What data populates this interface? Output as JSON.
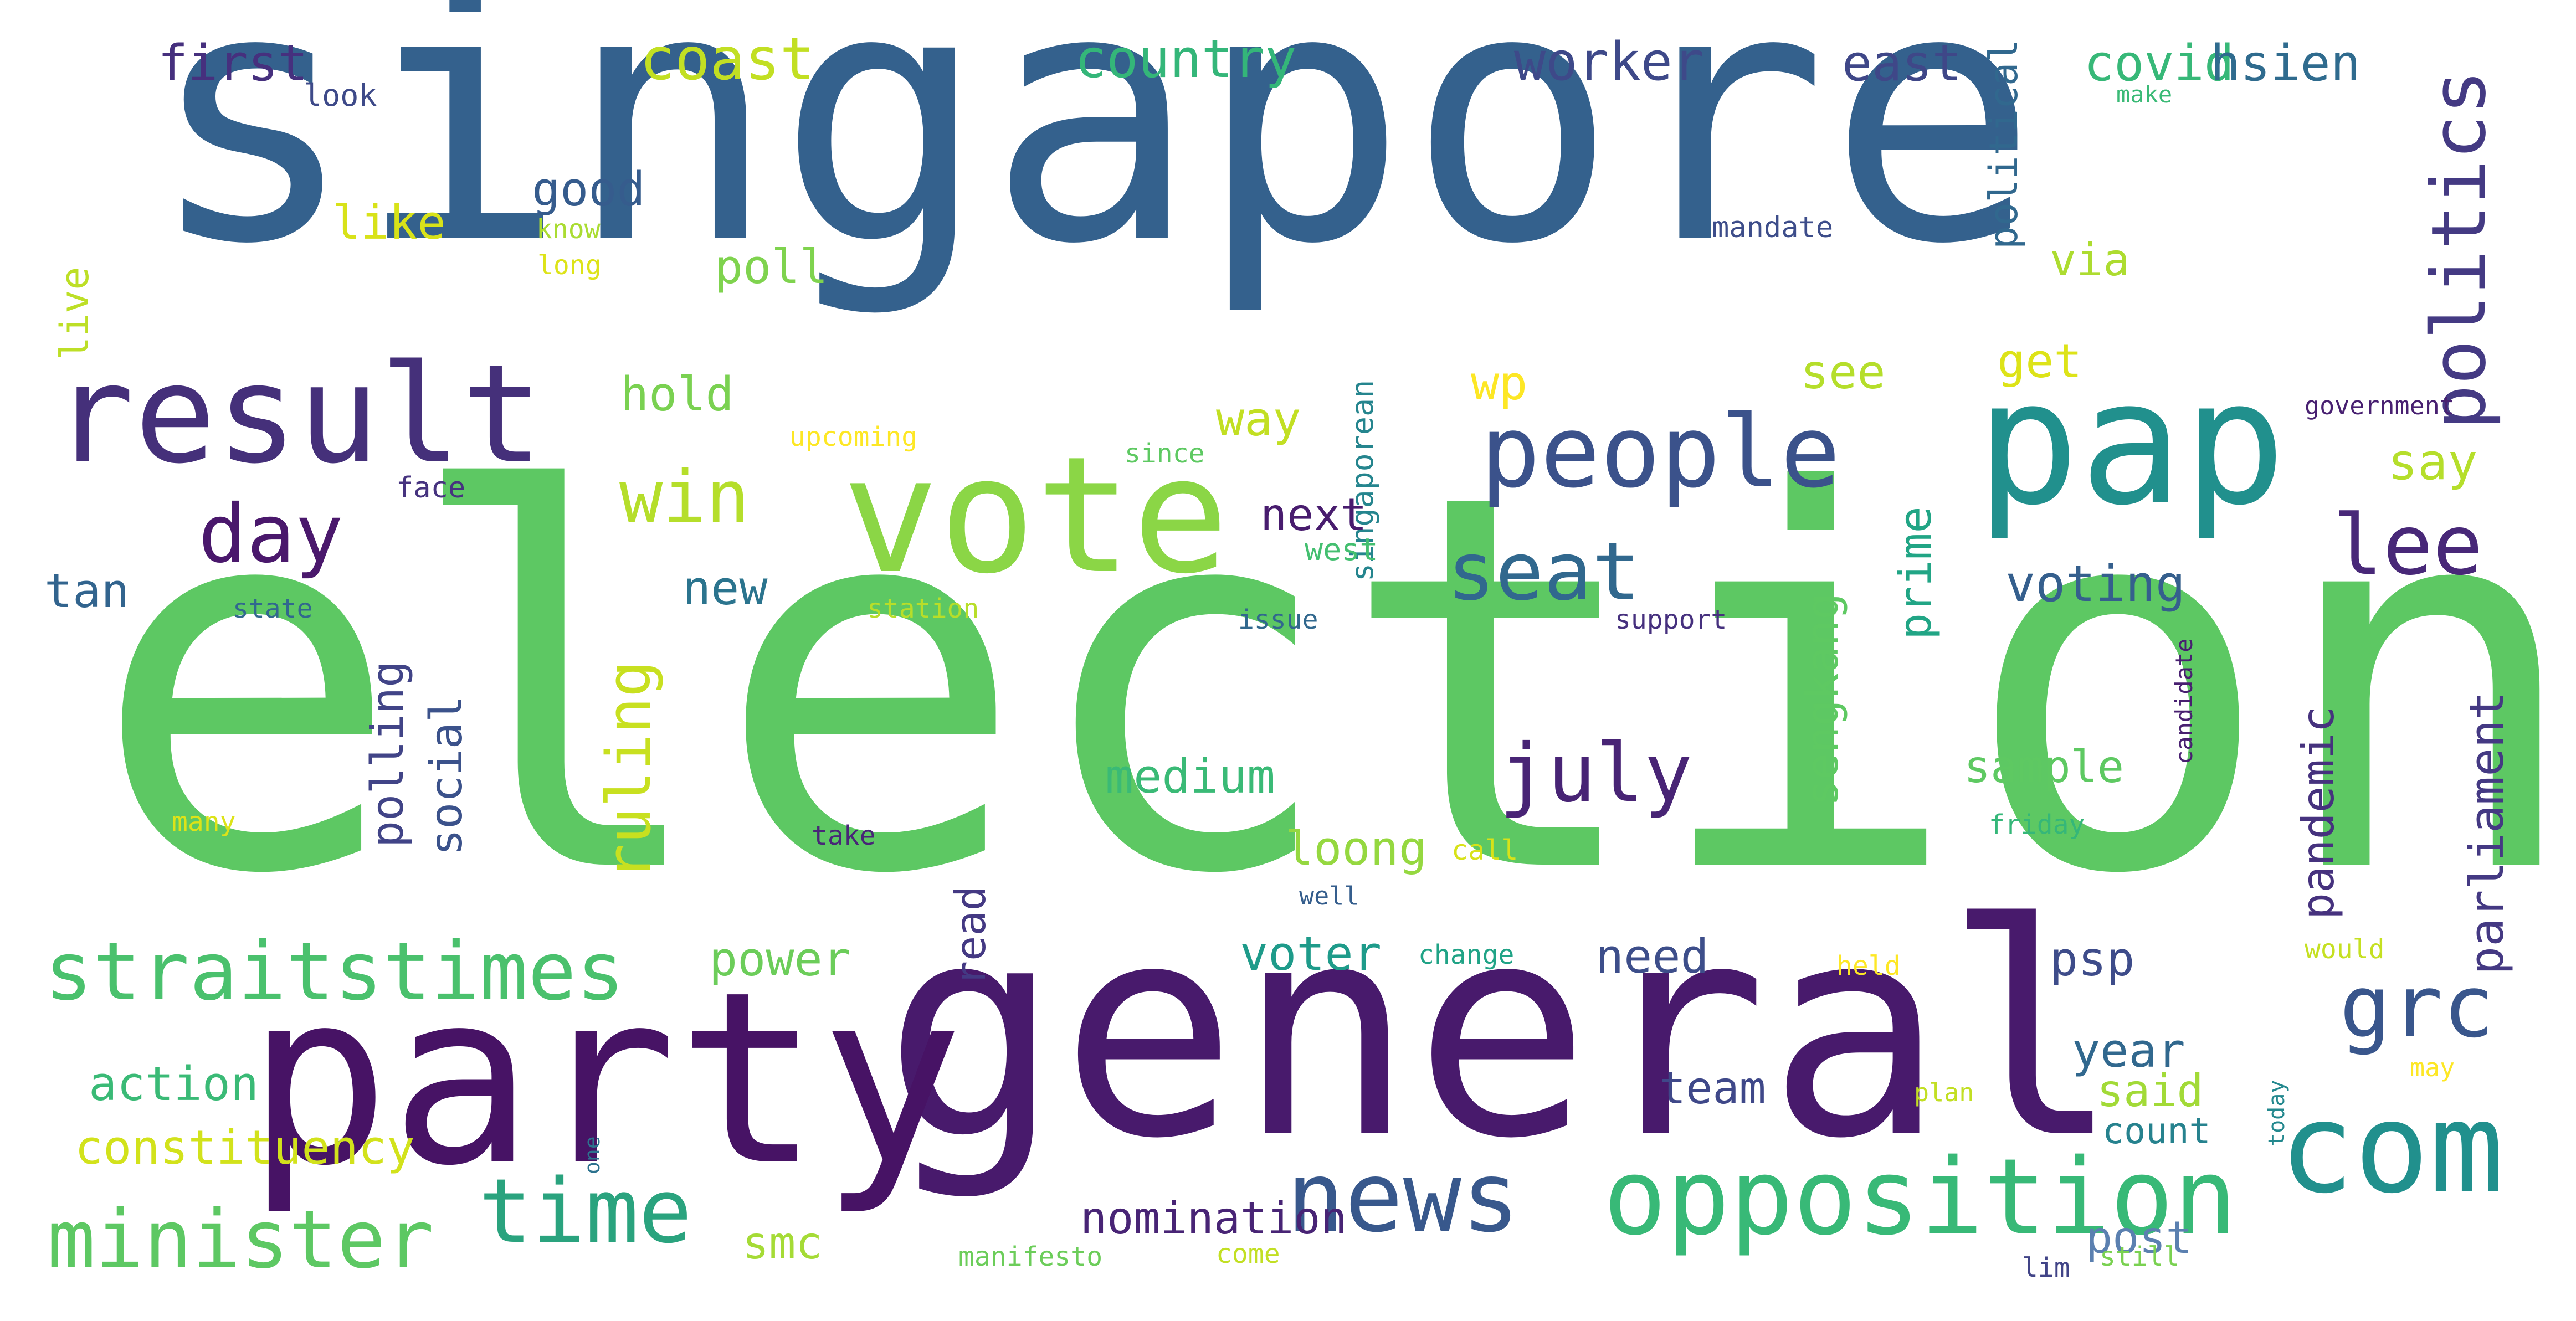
{
  "words": [
    {
      "text": "singapore",
      "color": "#34618d"
    },
    {
      "text": "election",
      "color": "#5dc863"
    },
    {
      "text": "general",
      "color": "#481a6c"
    },
    {
      "text": "party",
      "color": "#471365"
    },
    {
      "text": "vote",
      "color": "#8bd646"
    },
    {
      "text": "pap",
      "color": "#21908d"
    },
    {
      "text": "result",
      "color": "#45307a"
    },
    {
      "text": "com",
      "color": "#21908d"
    },
    {
      "text": "opposition",
      "color": "#38b977"
    },
    {
      "text": "people",
      "color": "#3b528b"
    },
    {
      "text": "news",
      "color": "#38588c"
    },
    {
      "text": "time",
      "color": "#2aa37e"
    },
    {
      "text": "minister",
      "color": "#5dc863"
    },
    {
      "text": "straitstimes",
      "color": "#4ac16d"
    },
    {
      "text": "july",
      "color": "#482475"
    },
    {
      "text": "grc",
      "color": "#39568c"
    },
    {
      "text": "lee",
      "color": "#482878"
    },
    {
      "text": "seat",
      "color": "#31688e"
    },
    {
      "text": "day",
      "color": "#4a186c"
    },
    {
      "text": "win",
      "color": "#b5de2b"
    },
    {
      "text": "politics",
      "color": "#443a83"
    },
    {
      "text": "ruling",
      "color": "#c8e020"
    },
    {
      "text": "parliament",
      "color": "#443983"
    },
    {
      "text": "polling",
      "color": "#414487"
    },
    {
      "text": "social",
      "color": "#3b528b"
    },
    {
      "text": "sengkang",
      "color": "#5ec962"
    },
    {
      "text": "prime",
      "color": "#21a585"
    },
    {
      "text": "pandemic",
      "color": "#46327e"
    },
    {
      "text": "read",
      "color": "#443983"
    },
    {
      "text": "live",
      "color": "#bddf26"
    },
    {
      "text": "political",
      "color": "#31688e"
    },
    {
      "text": "singaporean",
      "color": "#25858e"
    },
    {
      "text": "candidate",
      "color": "#481f70"
    },
    {
      "text": "today",
      "color": "#23888e"
    },
    {
      "text": "one",
      "color": "#2c728e"
    },
    {
      "text": "voting",
      "color": "#355f8d"
    },
    {
      "text": "coast",
      "color": "#c2df23"
    },
    {
      "text": "country",
      "color": "#34b679"
    },
    {
      "text": "worker",
      "color": "#3e4989"
    },
    {
      "text": "east",
      "color": "#3f4788"
    },
    {
      "text": "covid",
      "color": "#37b878"
    },
    {
      "text": "hsien",
      "color": "#2f6b8e"
    },
    {
      "text": "first",
      "color": "#46307e"
    },
    {
      "text": "hold",
      "color": "#7ad151"
    },
    {
      "text": "new",
      "color": "#2b748e"
    },
    {
      "text": "tan",
      "color": "#32648e"
    },
    {
      "text": "get",
      "color": "#dde318"
    },
    {
      "text": "wp",
      "color": "#fde725"
    },
    {
      "text": "see",
      "color": "#b5de2b"
    },
    {
      "text": "way",
      "color": "#c2df23"
    },
    {
      "text": "good",
      "color": "#365c8d"
    },
    {
      "text": "like",
      "color": "#d8e219"
    },
    {
      "text": "poll",
      "color": "#7fd34e"
    },
    {
      "text": "via",
      "color": "#addc30"
    },
    {
      "text": "say",
      "color": "#b5de2b"
    },
    {
      "text": "next",
      "color": "#481c6e"
    },
    {
      "text": "medium",
      "color": "#3aba76"
    },
    {
      "text": "sample",
      "color": "#5ec962"
    },
    {
      "text": "loong",
      "color": "#95d840"
    },
    {
      "text": "voter",
      "color": "#1e9b8a"
    },
    {
      "text": "need",
      "color": "#3d4e8a"
    },
    {
      "text": "psp",
      "color": "#3e4c8a"
    },
    {
      "text": "power",
      "color": "#6ccd5a"
    },
    {
      "text": "year",
      "color": "#31688e"
    },
    {
      "text": "said",
      "color": "#a2da37"
    },
    {
      "text": "team",
      "color": "#3f4889"
    },
    {
      "text": "count",
      "color": "#26828e"
    },
    {
      "text": "action",
      "color": "#3aba76"
    },
    {
      "text": "constituency",
      "color": "#d2e21b"
    },
    {
      "text": "smc",
      "color": "#a5db36"
    },
    {
      "text": "nomination",
      "color": "#482475"
    },
    {
      "text": "post",
      "color": "#5b80b0"
    },
    {
      "text": "west",
      "color": "#44bf70"
    },
    {
      "text": "look",
      "color": "#3e4a89"
    },
    {
      "text": "know",
      "color": "#aadc32"
    },
    {
      "text": "long",
      "color": "#dde318"
    },
    {
      "text": "mandate",
      "color": "#3d4d8a"
    },
    {
      "text": "make",
      "color": "#3aba76"
    },
    {
      "text": "upcoming",
      "color": "#fde725"
    },
    {
      "text": "since",
      "color": "#5ec962"
    },
    {
      "text": "government",
      "color": "#482071"
    },
    {
      "text": "face",
      "color": "#46337f"
    },
    {
      "text": "state",
      "color": "#31688e"
    },
    {
      "text": "station",
      "color": "#b8de29"
    },
    {
      "text": "issue",
      "color": "#31688e"
    },
    {
      "text": "support",
      "color": "#46307e"
    },
    {
      "text": "many",
      "color": "#dde318"
    },
    {
      "text": "take",
      "color": "#482677"
    },
    {
      "text": "call",
      "color": "#d8e219"
    },
    {
      "text": "friday",
      "color": "#35b779"
    },
    {
      "text": "well",
      "color": "#355e8d"
    },
    {
      "text": "change",
      "color": "#20a386"
    },
    {
      "text": "held",
      "color": "#fde725"
    },
    {
      "text": "would",
      "color": "#c5e021"
    },
    {
      "text": "may",
      "color": "#fde725"
    },
    {
      "text": "plan",
      "color": "#c2df23"
    },
    {
      "text": "manifesto",
      "color": "#6ccd5a"
    },
    {
      "text": "come",
      "color": "#c2df23"
    },
    {
      "text": "lim",
      "color": "#414487"
    },
    {
      "text": "still",
      "color": "#7ad151"
    }
  ]
}
